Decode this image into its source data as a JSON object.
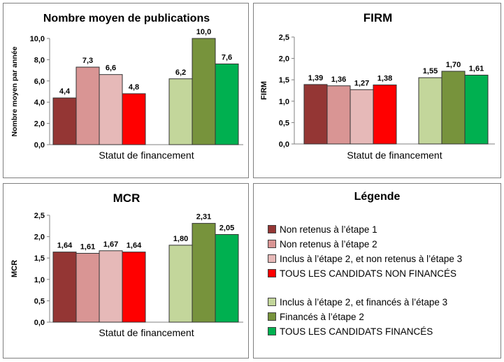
{
  "chart_data": [
    {
      "type": "bar",
      "title": "Nombre moyen  de publications",
      "xlabel": "Statut de financement",
      "ylabel": "Nombre moyen par année",
      "ylim": [
        0,
        10
      ],
      "yticks": [
        "0,0",
        "2,0",
        "4,0",
        "6,0",
        "8,0",
        "10,0"
      ],
      "series": [
        {
          "name": "Non retenus à l’étape 1",
          "values": [
            4.4
          ],
          "labels": [
            "4,4"
          ]
        },
        {
          "name": "Non retenus à l’étape 2",
          "values": [
            7.3
          ],
          "labels": [
            "7,3"
          ]
        },
        {
          "name": "Inclus à l’étape 2, et non retenus à l’étape 3",
          "values": [
            6.6
          ],
          "labels": [
            "6,6"
          ]
        },
        {
          "name": "TOUS LES CANDIDATS NON FINANCÉS",
          "values": [
            4.8
          ],
          "labels": [
            "4,8"
          ]
        },
        {
          "name": "Inclus à l’étape 2, et financés à l’étape 3",
          "values": [
            6.2
          ],
          "labels": [
            "6,2"
          ]
        },
        {
          "name": "Financés à l’étape 2",
          "values": [
            10.0
          ],
          "labels": [
            "10,0"
          ]
        },
        {
          "name": "TOUS LES CANDIDATS FINANCÉS",
          "values": [
            7.6
          ],
          "labels": [
            "7,6"
          ]
        }
      ]
    },
    {
      "type": "bar",
      "title": "FIRM",
      "xlabel": "Statut de financement",
      "ylabel": "FIRM",
      "ylim": [
        0,
        2.5
      ],
      "yticks": [
        "0,0",
        "0,5",
        "1,0",
        "1,5",
        "2,0",
        "2,5"
      ],
      "series": [
        {
          "name": "Non retenus à l’étape 1",
          "values": [
            1.39
          ],
          "labels": [
            "1,39"
          ]
        },
        {
          "name": "Non retenus à l’étape 2",
          "values": [
            1.36
          ],
          "labels": [
            "1,36"
          ]
        },
        {
          "name": "Inclus à l’étape 2, et non retenus à l’étape 3",
          "values": [
            1.27
          ],
          "labels": [
            "1,27"
          ]
        },
        {
          "name": "TOUS LES CANDIDATS NON FINANCÉS",
          "values": [
            1.38
          ],
          "labels": [
            "1,38"
          ]
        },
        {
          "name": "Inclus à l’étape 2, et financés à l’étape 3",
          "values": [
            1.55
          ],
          "labels": [
            "1,55"
          ]
        },
        {
          "name": "Financés à l’étape 2",
          "values": [
            1.7
          ],
          "labels": [
            "1,70"
          ]
        },
        {
          "name": "TOUS LES CANDIDATS FINANCÉS",
          "values": [
            1.61
          ],
          "labels": [
            "1,61"
          ]
        }
      ]
    },
    {
      "type": "bar",
      "title": "MCR",
      "xlabel": "Statut de financement",
      "ylabel": "MCR",
      "ylim": [
        0,
        2.5
      ],
      "yticks": [
        "0,0",
        "0,5",
        "1,0",
        "1,5",
        "2,0",
        "2,5"
      ],
      "series": [
        {
          "name": "Non retenus à l’étape 1",
          "values": [
            1.64
          ],
          "labels": [
            "1,64"
          ]
        },
        {
          "name": "Non retenus à l’étape 2",
          "values": [
            1.61
          ],
          "labels": [
            "1,61"
          ]
        },
        {
          "name": "Inclus à l’étape 2, et non retenus à l’étape 3",
          "values": [
            1.67
          ],
          "labels": [
            "1,67"
          ]
        },
        {
          "name": "TOUS LES CANDIDATS NON FINANCÉS",
          "values": [
            1.64
          ],
          "labels": [
            "1,64"
          ]
        },
        {
          "name": "Inclus à l’étape 2, et financés à l’étape 3",
          "values": [
            1.8
          ],
          "labels": [
            "1,80"
          ]
        },
        {
          "name": "Financés à l’étape 2",
          "values": [
            2.31
          ],
          "labels": [
            "2,31"
          ]
        },
        {
          "name": "TOUS LES CANDIDATS FINANCÉS",
          "values": [
            2.05
          ],
          "labels": [
            "2,05"
          ]
        }
      ]
    }
  ],
  "legend": {
    "title": "Légende",
    "items": [
      {
        "label": "Non retenus à l’étape 1",
        "color": "#943634"
      },
      {
        "label": "Non retenus à l’étape 2",
        "color": "#d99594"
      },
      {
        "label": "Inclus à l’étape 2, et non retenus à l’étape 3",
        "color": "#e6b9b8"
      },
      {
        "label": "TOUS LES CANDIDATS NON FINANCÉS",
        "color": "#ff0000"
      },
      {
        "label": "Inclus à l’étape 2, et financés à l’étape 3",
        "color": "#c3d69b"
      },
      {
        "label": "Financés à l’étape 2",
        "color": "#77933c"
      },
      {
        "label": "TOUS LES CANDIDATS FINANCÉS",
        "color": "#00b050"
      }
    ]
  }
}
